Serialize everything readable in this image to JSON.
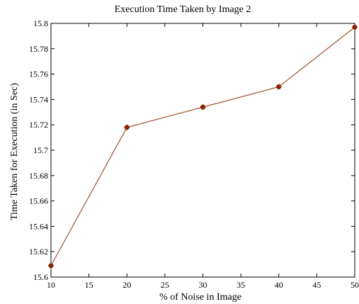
{
  "chart_data": {
    "type": "line",
    "title": "Execution Time Taken by Image 2",
    "xlabel": "% of Noise in Image",
    "ylabel": "Time Taken for Execution (in Sec)",
    "xlim": [
      10,
      50
    ],
    "ylim": [
      15.6,
      15.8
    ],
    "x_ticks": [
      10,
      15,
      20,
      25,
      30,
      35,
      40,
      45,
      50
    ],
    "y_ticks": [
      15.6,
      15.62,
      15.64,
      15.66,
      15.68,
      15.7,
      15.72,
      15.74,
      15.76,
      15.78,
      15.8
    ],
    "y_tick_labels": [
      "15.6",
      "15.62",
      "15.64",
      "15.66",
      "15.68",
      "15.7",
      "15.72",
      "15.74",
      "15.76",
      "15.78",
      "15.8"
    ],
    "x_tick_labels": [
      "10",
      "15",
      "20",
      "25",
      "30",
      "35",
      "40",
      "45",
      "50"
    ],
    "grid": false,
    "series": [
      {
        "x": [
          10,
          20,
          30,
          40,
          50
        ],
        "y": [
          15.609,
          15.718,
          15.734,
          15.75,
          15.797
        ],
        "color": "#a0522d",
        "marker_color": "#8b2500"
      }
    ]
  }
}
